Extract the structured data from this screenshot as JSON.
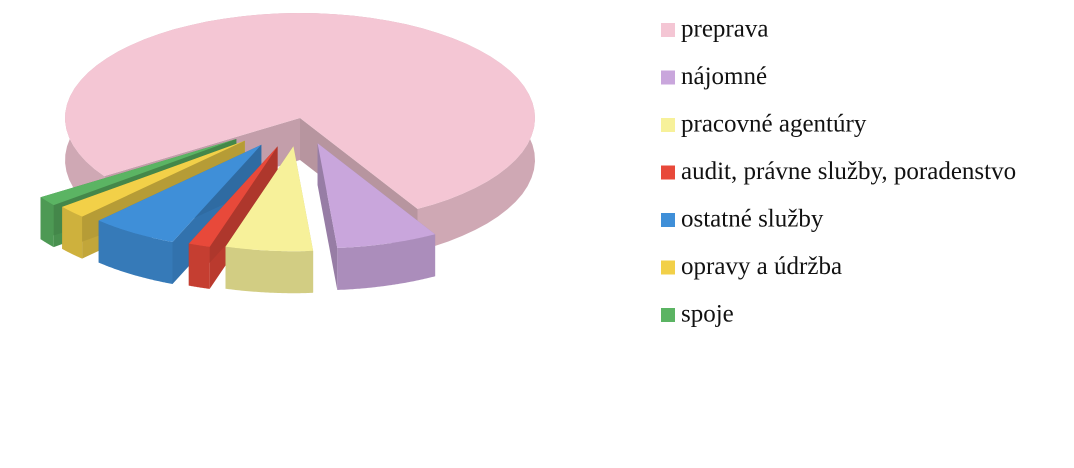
{
  "chart_data": {
    "type": "pie3d",
    "categories": [
      "preprava",
      "nájomné",
      "pracovné agentúry",
      "audit, právne služby, poradenstvo",
      "ostatné služby",
      "opravy a údržba",
      "spoje"
    ],
    "values": [
      76,
      7,
      6,
      1.5,
      6,
      2,
      1.5
    ],
    "colors": [
      "#f4c6d4",
      "#c9a6dc",
      "#f7f19a",
      "#e8493a",
      "#3f8fd8",
      "#f2d048",
      "#5bb463"
    ],
    "legend": "right"
  }
}
